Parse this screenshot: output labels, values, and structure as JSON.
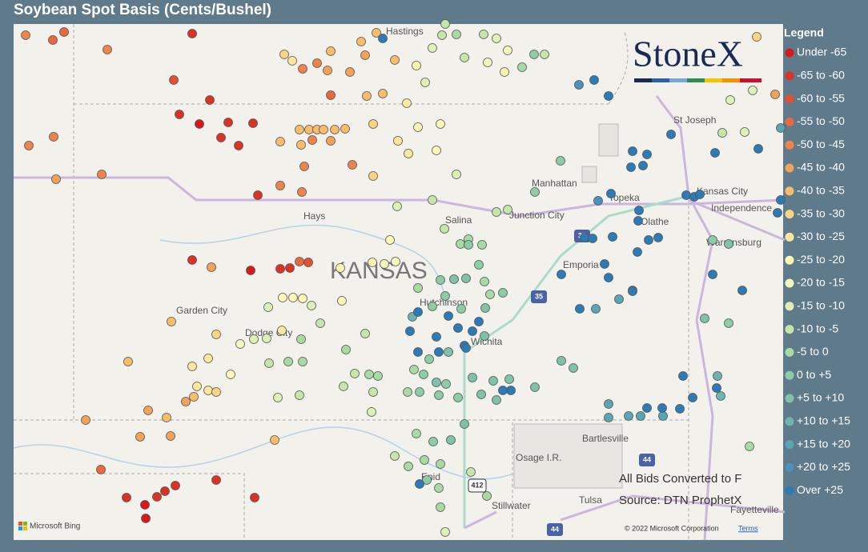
{
  "header": {
    "title": "Soybean Spot Basis (Cents/Bushel)"
  },
  "legend": {
    "title": "Legend",
    "items": [
      {
        "label": "Under -65",
        "color": "#d7191c"
      },
      {
        "label": "-65 to -60",
        "color": "#dc3226"
      },
      {
        "label": "-60 to -55",
        "color": "#e24f32"
      },
      {
        "label": "-55 to -50",
        "color": "#e8683f"
      },
      {
        "label": "-50 to -45",
        "color": "#ee844c"
      },
      {
        "label": "-45 to -40",
        "color": "#f3a25a"
      },
      {
        "label": "-40 to -35",
        "color": "#f8bd6a"
      },
      {
        "label": "-35 to -30",
        "color": "#fbd383"
      },
      {
        "label": "-30 to -25",
        "color": "#fde79d"
      },
      {
        "label": "-25 to -20",
        "color": "#fff6b5"
      },
      {
        "label": "-20 to -15",
        "color": "#f3f8bf"
      },
      {
        "label": "-15 to -10",
        "color": "#def0b5"
      },
      {
        "label": "-10 to -5",
        "color": "#c5e6a9"
      },
      {
        "label": "-5 to 0",
        "color": "#a8dba3"
      },
      {
        "label": "0 to +5",
        "color": "#8ccda6"
      },
      {
        "label": "+5 to +10",
        "color": "#80c1a9"
      },
      {
        "label": "+10 to +15",
        "color": "#6fb4ad"
      },
      {
        "label": "+15 to +20",
        "color": "#5aa5b4"
      },
      {
        "label": "+20 to +25",
        "color": "#4a91bf"
      },
      {
        "label": "Over +25",
        "color": "#2c7bb6"
      }
    ]
  },
  "map": {
    "state": "KANSAS",
    "cities": [
      "Hastings",
      "Hays",
      "Salina",
      "Junction City",
      "Manhattan",
      "Topeka",
      "Kansas City",
      "Independence",
      "Olathe",
      "Warrensburg",
      "Emporia",
      "Hutchinson",
      "Wichita",
      "Garden City",
      "Dodge City",
      "Bartlesville",
      "Osage I.R.",
      "Enid",
      "Stillwater",
      "Tulsa",
      "Fayetteville",
      "St Joseph"
    ],
    "routes": [
      "33",
      "35",
      "44",
      "412",
      "44"
    ]
  },
  "logo": "StoneX",
  "notes": [
    "All Bids Converted to F",
    "Source: DTN ProphetX"
  ],
  "footer": {
    "bing": "Microsoft Bing",
    "copyright": "© 2022 Microsoft Corporation",
    "terms": "Terms"
  }
}
